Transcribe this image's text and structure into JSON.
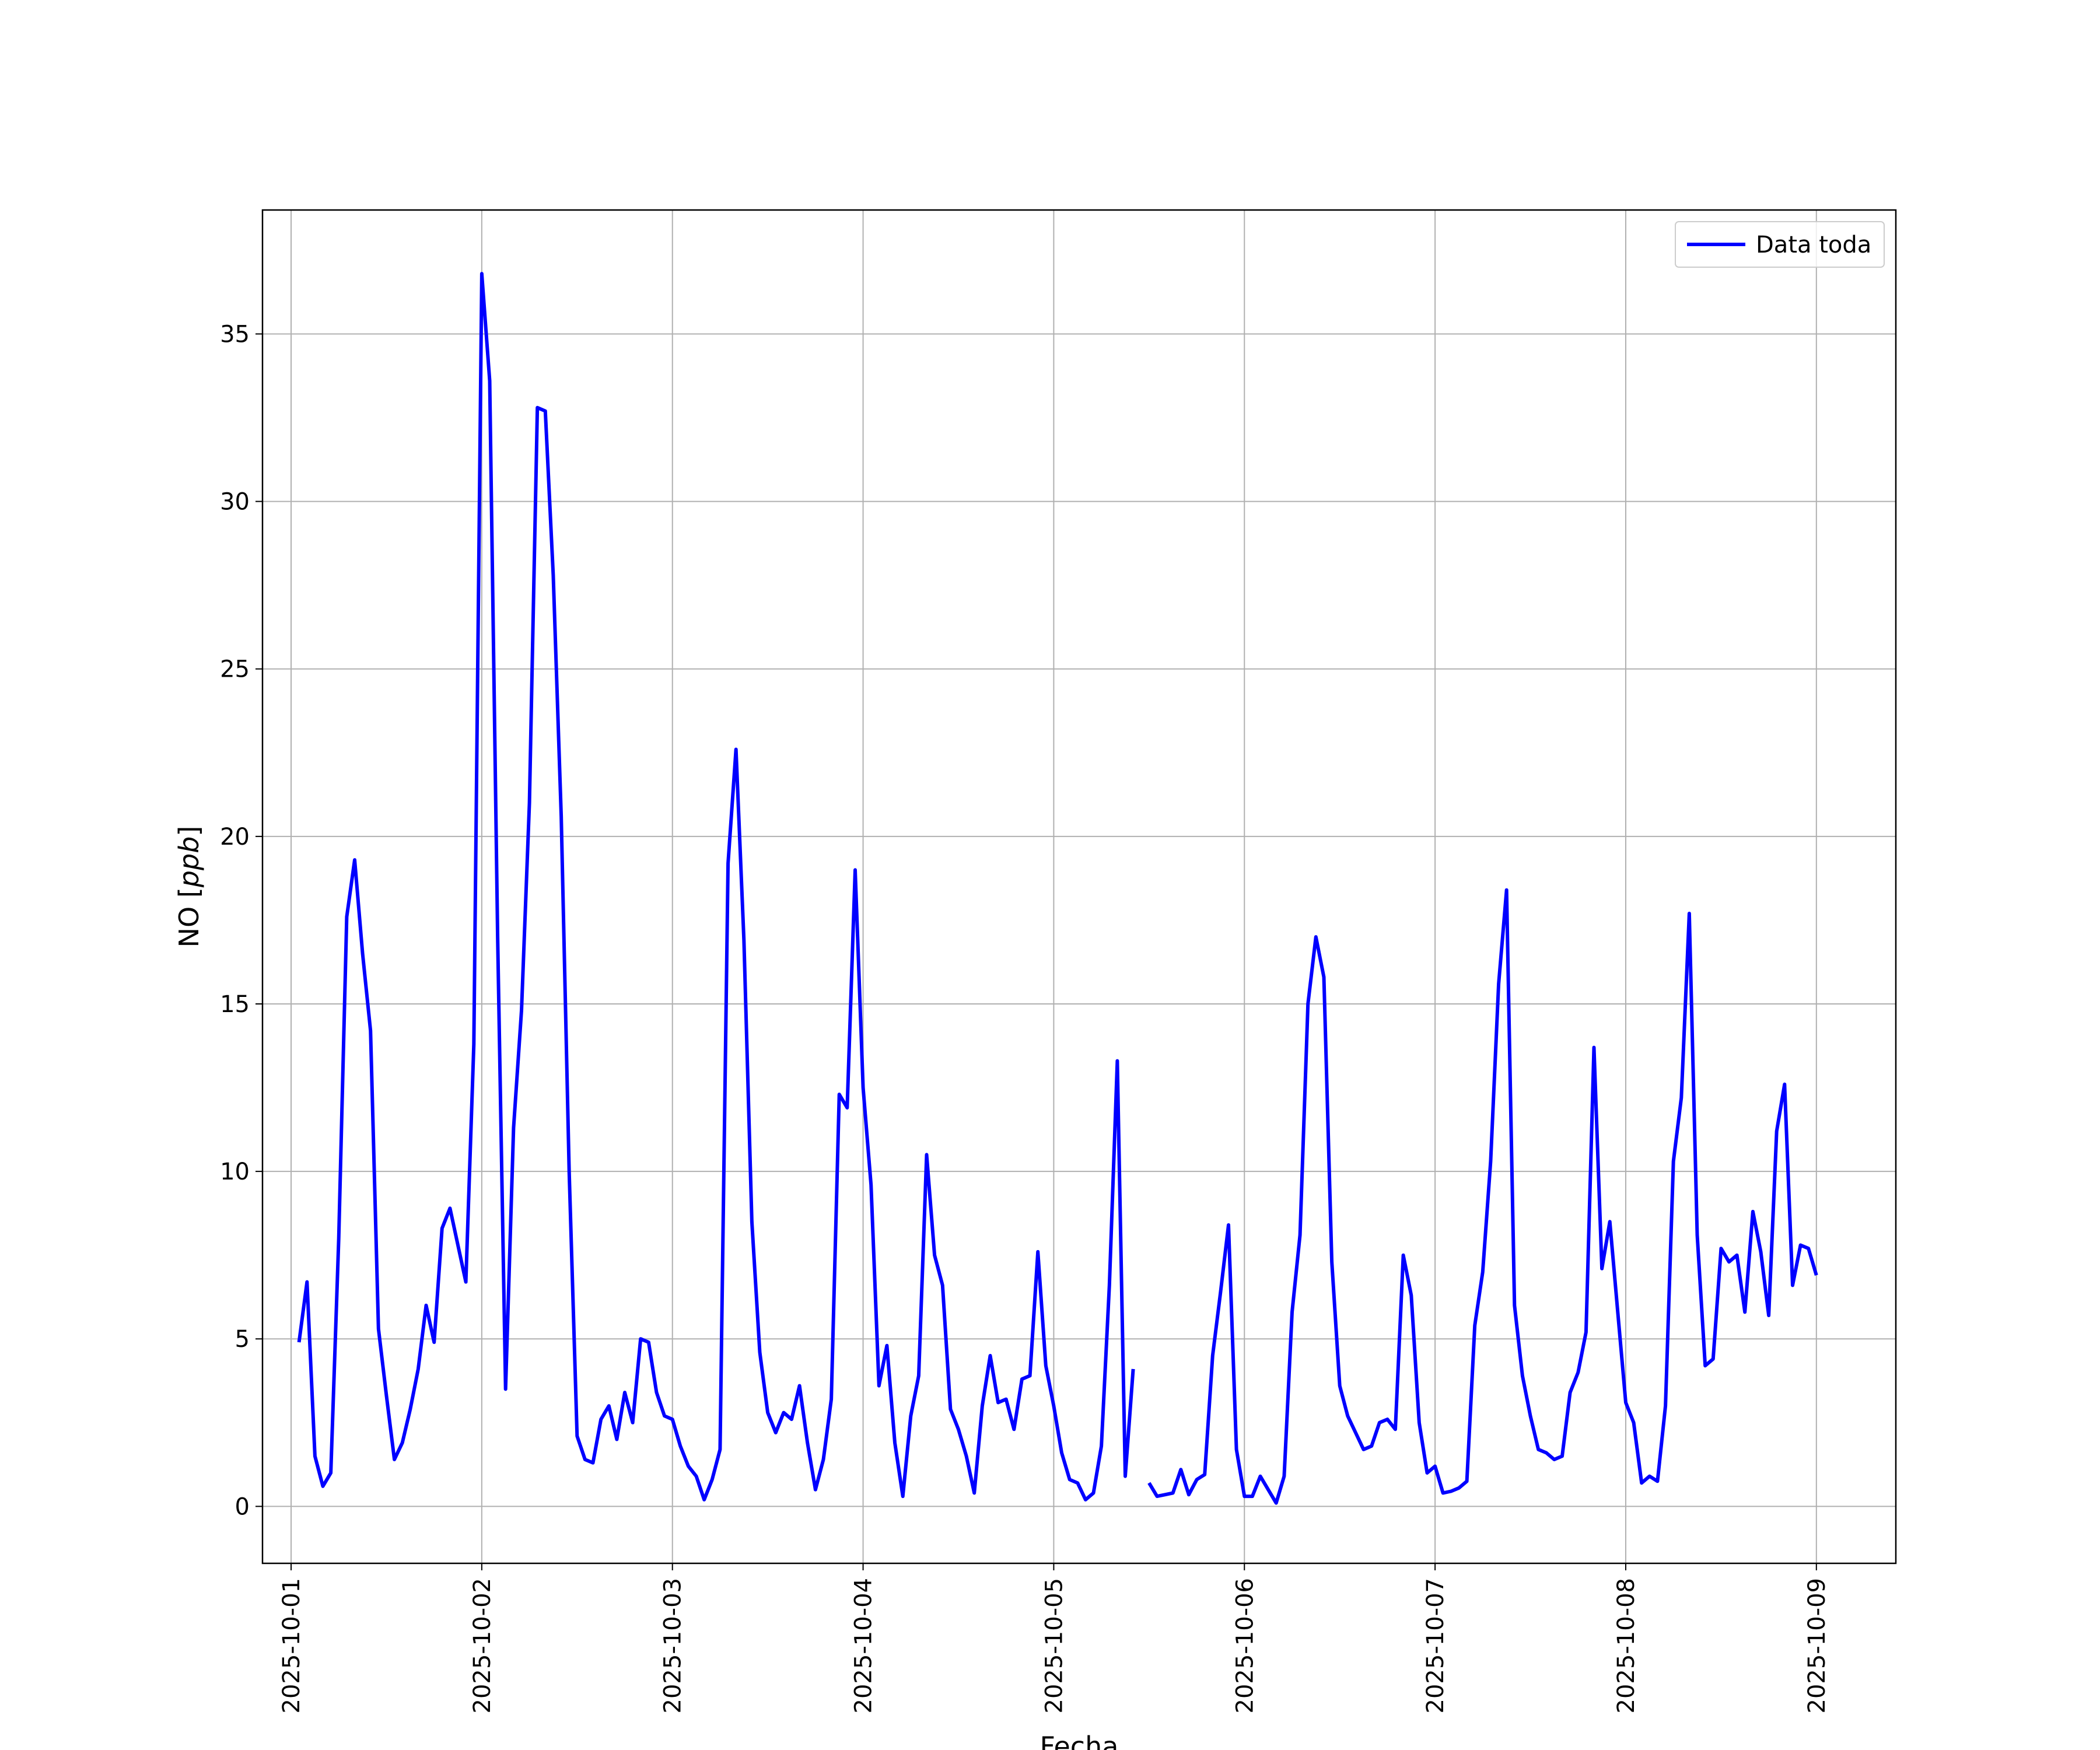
{
  "chart_data": {
    "type": "line",
    "title": "",
    "xlabel": "Fecha",
    "ylabel": "NO [ppb]",
    "ylabel_main": "NO [",
    "ylabel_unit": "ppb",
    "ylabel_close": "]",
    "x_axis": "date",
    "xlim": [
      "2025-09-30 20:24",
      "2025-10-09 10:00"
    ],
    "ylim": [
      -1.7,
      38.7
    ],
    "xticks": [
      "2025-10-01",
      "2025-10-02",
      "2025-10-03",
      "2025-10-04",
      "2025-10-05",
      "2025-10-06",
      "2025-10-07",
      "2025-10-08",
      "2025-10-09"
    ],
    "yticks": [
      0,
      5,
      10,
      15,
      20,
      25,
      30,
      35
    ],
    "grid": true,
    "legend_placement": "top-right",
    "series": [
      {
        "name": "Data toda",
        "color": "#0000ff",
        "x": [
          "2025-10-01 01:00",
          "2025-10-01 02:00",
          "2025-10-01 03:00",
          "2025-10-01 04:00",
          "2025-10-01 05:00",
          "2025-10-01 06:00",
          "2025-10-01 07:00",
          "2025-10-01 08:00",
          "2025-10-01 09:00",
          "2025-10-01 10:00",
          "2025-10-01 11:00",
          "2025-10-01 12:00",
          "2025-10-01 13:00",
          "2025-10-01 14:00",
          "2025-10-01 15:00",
          "2025-10-01 16:00",
          "2025-10-01 17:00",
          "2025-10-01 18:00",
          "2025-10-01 19:00",
          "2025-10-01 20:00",
          "2025-10-01 21:00",
          "2025-10-01 22:00",
          "2025-10-01 23:00",
          "2025-10-02 00:00",
          "2025-10-02 01:00",
          "2025-10-02 02:00",
          "2025-10-02 03:00",
          "2025-10-02 04:00",
          "2025-10-02 05:00",
          "2025-10-02 06:00",
          "2025-10-02 07:00",
          "2025-10-02 08:00",
          "2025-10-02 09:00",
          "2025-10-02 10:00",
          "2025-10-02 11:00",
          "2025-10-02 12:00",
          "2025-10-02 13:00",
          "2025-10-02 14:00",
          "2025-10-02 15:00",
          "2025-10-02 16:00",
          "2025-10-02 17:00",
          "2025-10-02 18:00",
          "2025-10-02 19:00",
          "2025-10-02 20:00",
          "2025-10-02 21:00",
          "2025-10-02 22:00",
          "2025-10-02 23:00",
          "2025-10-03 00:00",
          "2025-10-03 01:00",
          "2025-10-03 02:00",
          "2025-10-03 03:00",
          "2025-10-03 04:00",
          "2025-10-03 05:00",
          "2025-10-03 06:00",
          "2025-10-03 07:00",
          "2025-10-03 08:00",
          "2025-10-03 09:00",
          "2025-10-03 10:00",
          "2025-10-03 11:00",
          "2025-10-03 12:00",
          "2025-10-03 13:00",
          "2025-10-03 14:00",
          "2025-10-03 15:00",
          "2025-10-03 16:00",
          "2025-10-03 17:00",
          "2025-10-03 18:00",
          "2025-10-03 19:00",
          "2025-10-03 20:00",
          "2025-10-03 21:00",
          "2025-10-03 22:00",
          "2025-10-03 23:00",
          "2025-10-04 00:00",
          "2025-10-04 01:00",
          "2025-10-04 02:00",
          "2025-10-04 03:00",
          "2025-10-04 04:00",
          "2025-10-04 05:00",
          "2025-10-04 06:00",
          "2025-10-04 07:00",
          "2025-10-04 08:00",
          "2025-10-04 09:00",
          "2025-10-04 10:00",
          "2025-10-04 11:00",
          "2025-10-04 12:00",
          "2025-10-04 13:00",
          "2025-10-04 14:00",
          "2025-10-04 15:00",
          "2025-10-04 16:00",
          "2025-10-04 17:00",
          "2025-10-04 18:00",
          "2025-10-04 19:00",
          "2025-10-04 20:00",
          "2025-10-04 21:00",
          "2025-10-04 22:00",
          "2025-10-04 23:00",
          "2025-10-05 00:00",
          "2025-10-05 01:00",
          "2025-10-05 02:00",
          "2025-10-05 03:00",
          "2025-10-05 04:00",
          "2025-10-05 05:00",
          "2025-10-05 06:00",
          "2025-10-05 07:00",
          "2025-10-05 08:00",
          "2025-10-05 09:00",
          "2025-10-05 10:00",
          "2025-10-05 11:00",
          "2025-10-05 12:00",
          "2025-10-05 13:00",
          "2025-10-05 14:00",
          "2025-10-05 15:00",
          "2025-10-05 16:00",
          "2025-10-05 17:00",
          "2025-10-05 18:00",
          "2025-10-05 19:00",
          "2025-10-05 20:00",
          "2025-10-05 21:00",
          "2025-10-05 22:00",
          "2025-10-05 23:00",
          "2025-10-06 00:00",
          "2025-10-06 01:00",
          "2025-10-06 02:00",
          "2025-10-06 03:00",
          "2025-10-06 04:00",
          "2025-10-06 05:00",
          "2025-10-06 06:00",
          "2025-10-06 07:00",
          "2025-10-06 08:00",
          "2025-10-06 09:00",
          "2025-10-06 10:00",
          "2025-10-06 11:00",
          "2025-10-06 12:00",
          "2025-10-06 13:00",
          "2025-10-06 14:00",
          "2025-10-06 15:00",
          "2025-10-06 16:00",
          "2025-10-06 17:00",
          "2025-10-06 18:00",
          "2025-10-06 19:00",
          "2025-10-06 20:00",
          "2025-10-06 21:00",
          "2025-10-06 22:00",
          "2025-10-06 23:00",
          "2025-10-07 00:00",
          "2025-10-07 01:00",
          "2025-10-07 02:00",
          "2025-10-07 03:00",
          "2025-10-07 04:00",
          "2025-10-07 05:00",
          "2025-10-07 06:00",
          "2025-10-07 07:00",
          "2025-10-07 08:00",
          "2025-10-07 09:00",
          "2025-10-07 10:00",
          "2025-10-07 11:00",
          "2025-10-07 12:00",
          "2025-10-07 13:00",
          "2025-10-07 14:00",
          "2025-10-07 15:00",
          "2025-10-07 16:00",
          "2025-10-07 17:00",
          "2025-10-07 18:00",
          "2025-10-07 19:00",
          "2025-10-07 20:00",
          "2025-10-07 21:00",
          "2025-10-07 22:00",
          "2025-10-07 23:00",
          "2025-10-08 00:00",
          "2025-10-08 01:00",
          "2025-10-08 02:00",
          "2025-10-08 03:00",
          "2025-10-08 04:00",
          "2025-10-08 05:00",
          "2025-10-08 06:00",
          "2025-10-08 07:00",
          "2025-10-08 08:00",
          "2025-10-08 09:00",
          "2025-10-08 10:00",
          "2025-10-08 11:00",
          "2025-10-08 12:00",
          "2025-10-08 13:00",
          "2025-10-08 14:00",
          "2025-10-08 15:00",
          "2025-10-08 16:00",
          "2025-10-08 17:00",
          "2025-10-08 18:00",
          "2025-10-08 19:00",
          "2025-10-08 20:00",
          "2025-10-08 21:00",
          "2025-10-08 22:00",
          "2025-10-08 23:00",
          "2025-10-09 00:00"
        ],
        "values": [
          4.9,
          6.7,
          1.5,
          0.6,
          1.0,
          8.0,
          17.6,
          19.3,
          16.5,
          14.2,
          5.3,
          3.3,
          1.4,
          1.9,
          2.9,
          4.1,
          6.0,
          4.9,
          8.3,
          8.9,
          7.8,
          6.7,
          13.8,
          36.8,
          33.6,
          17.0,
          3.5,
          11.3,
          14.8,
          21.0,
          32.8,
          32.7,
          27.8,
          20.6,
          10.0,
          2.1,
          1.4,
          1.3,
          2.6,
          3.0,
          2.0,
          3.4,
          2.5,
          5.0,
          4.9,
          3.4,
          2.7,
          2.6,
          1.8,
          1.2,
          0.9,
          0.2,
          0.8,
          1.7,
          19.2,
          22.6,
          16.9,
          8.5,
          4.6,
          2.8,
          2.2,
          2.8,
          2.6,
          3.6,
          1.9,
          0.5,
          1.4,
          3.2,
          12.3,
          11.9,
          19.0,
          12.5,
          9.6,
          3.6,
          4.8,
          1.9,
          0.3,
          2.7,
          3.9,
          10.5,
          7.5,
          6.6,
          2.9,
          2.3,
          1.5,
          0.4,
          3.0,
          4.5,
          3.1,
          3.2,
          2.3,
          3.8,
          3.9,
          7.6,
          4.2,
          3.0,
          1.6,
          0.8,
          0.7,
          0.2,
          0.4,
          1.8,
          6.6,
          13.3,
          0.9,
          4.1,
          null,
          0.7,
          0.3,
          0.35,
          0.4,
          1.1,
          0.35,
          0.8,
          0.95,
          4.5,
          6.4,
          8.4,
          1.7,
          0.3,
          0.3,
          0.9,
          0.5,
          0.1,
          0.9,
          5.8,
          8.1,
          15.0,
          17.0,
          15.8,
          7.3,
          3.6,
          2.7,
          2.2,
          1.7,
          1.8,
          2.5,
          2.6,
          2.3,
          7.5,
          6.3,
          2.5,
          1.0,
          1.2,
          0.4,
          0.45,
          0.55,
          0.75,
          5.4,
          7.0,
          10.3,
          15.6,
          18.4,
          6.0,
          3.9,
          2.7,
          1.7,
          1.6,
          1.4,
          1.5,
          3.4,
          4.0,
          5.2,
          13.7,
          7.1,
          8.5,
          5.8,
          3.1,
          2.5,
          0.7,
          0.9,
          0.75,
          3.0,
          10.3,
          12.2,
          17.7,
          8.1,
          4.2,
          4.4,
          7.7,
          7.3,
          7.5,
          5.8,
          8.8,
          7.6,
          5.7,
          11.2,
          12.6,
          6.6,
          7.8,
          7.7,
          6.9
        ]
      }
    ]
  }
}
